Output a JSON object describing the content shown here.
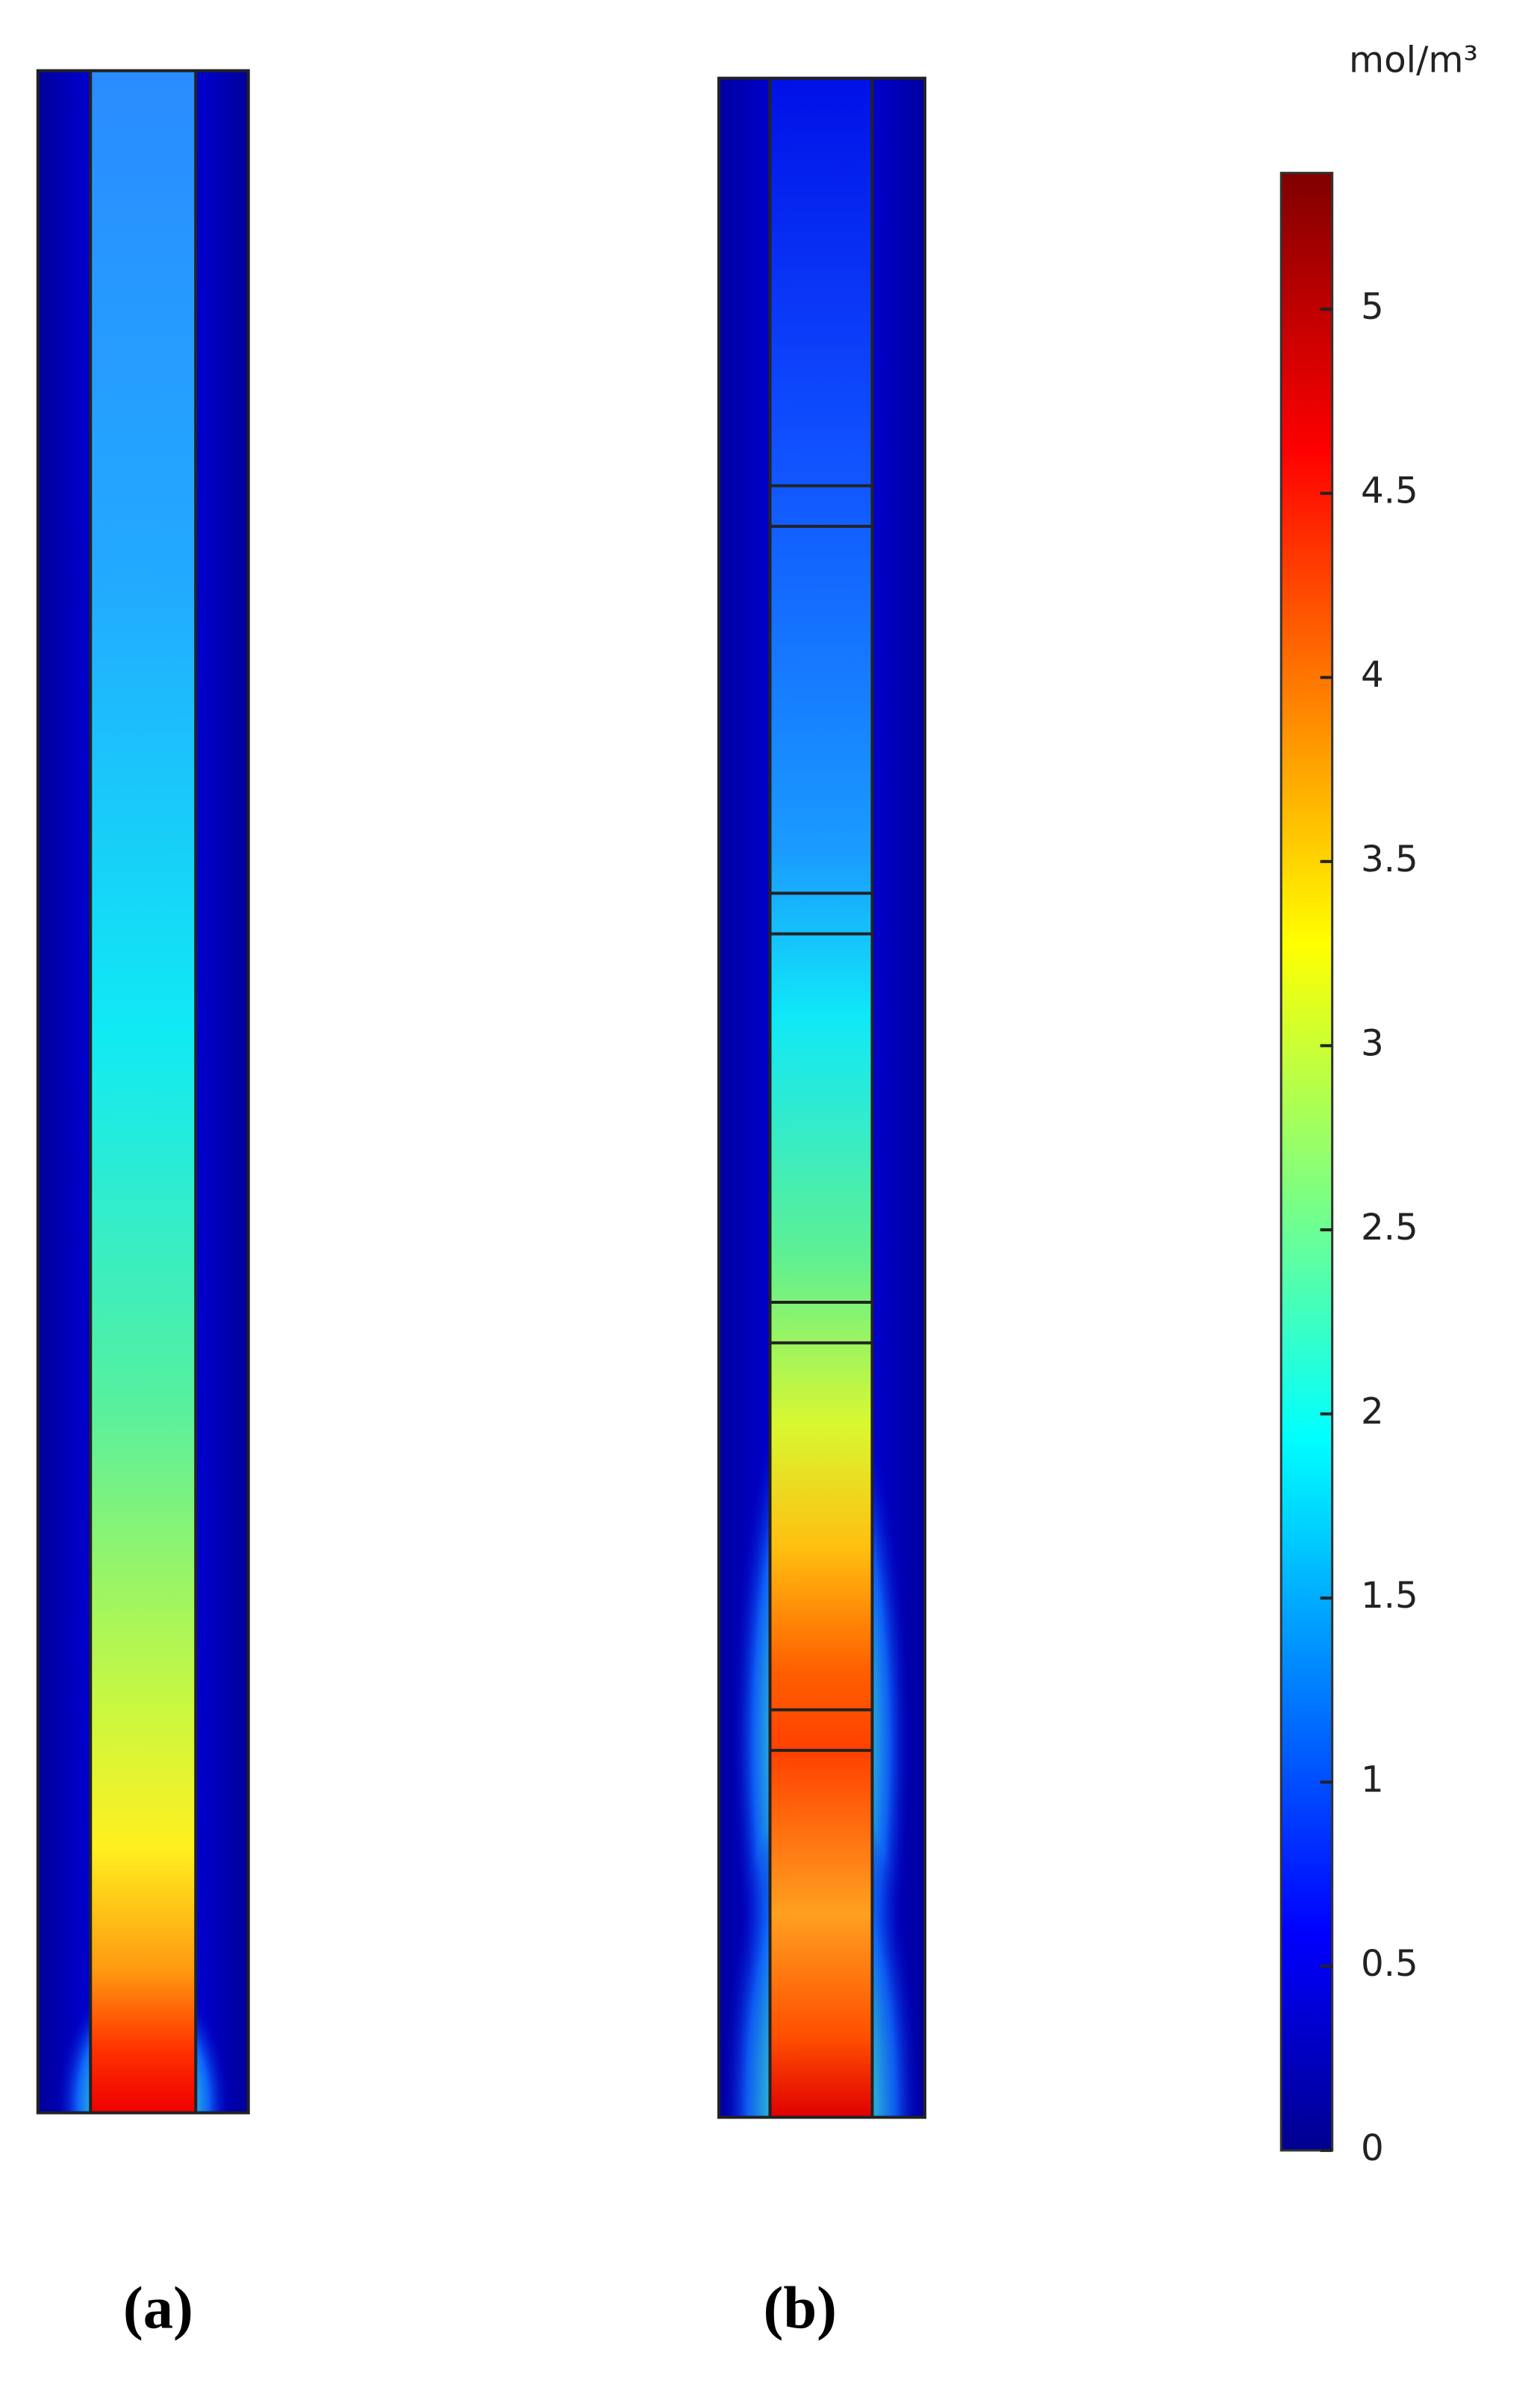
{
  "colorbar": {
    "unit": "mol/m³",
    "lim": [
      0,
      5.37
    ],
    "ticks": [
      0,
      0.5,
      1,
      1.5,
      2,
      2.5,
      3,
      3.5,
      4,
      4.5,
      5
    ]
  },
  "panels": [
    {
      "label": "(a)"
    },
    {
      "label": "(b)"
    }
  ]
}
